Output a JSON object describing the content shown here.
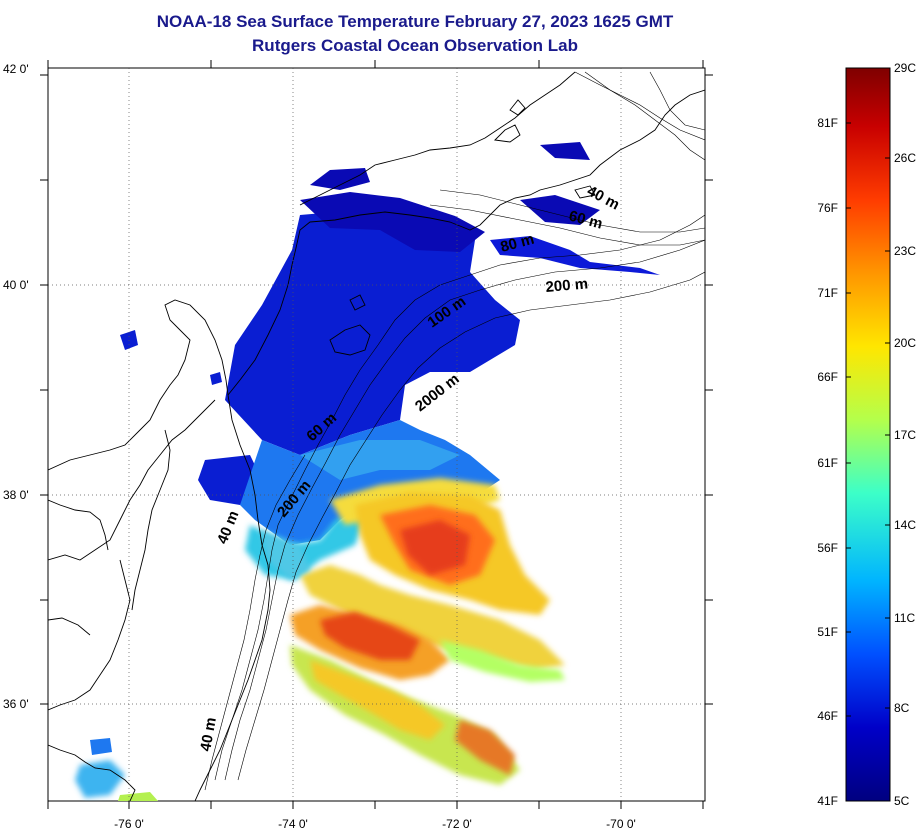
{
  "title": {
    "line1": "NOAA-18 Sea Surface Temperature February 27, 2023 1625 GMT",
    "line2": "Rutgers Coastal Ocean Observation Lab"
  },
  "map": {
    "lon_labels": [
      "-76 0'",
      "-74 0'",
      "-72 0'",
      "-70 0'"
    ],
    "lat_labels": [
      "42 0'",
      "40 0'",
      "38 0'",
      "36 0'"
    ],
    "lon_range": [
      -77,
      -69
    ],
    "lat_range": [
      35,
      42
    ],
    "grid": "dotted",
    "contour_labels": [
      "40 m",
      "60 m",
      "80 m",
      "200 m",
      "100 m",
      "2000 m",
      "60 m",
      "200 m",
      "40 m",
      "40 m"
    ]
  },
  "colorbar": {
    "fahrenheit": [
      "81F",
      "76F",
      "71F",
      "66F",
      "61F",
      "56F",
      "51F",
      "46F",
      "41F"
    ],
    "celsius": [
      "29C",
      "26C",
      "23C",
      "20C",
      "17C",
      "14C",
      "11C",
      "8C",
      "5C"
    ],
    "colors": [
      "#7f0000",
      "#c80000",
      "#ff3c00",
      "#ff9600",
      "#ffe600",
      "#b4ff4b",
      "#3cffc8",
      "#00b4ff",
      "#0050ff",
      "#0000c8",
      "#000080"
    ]
  }
}
